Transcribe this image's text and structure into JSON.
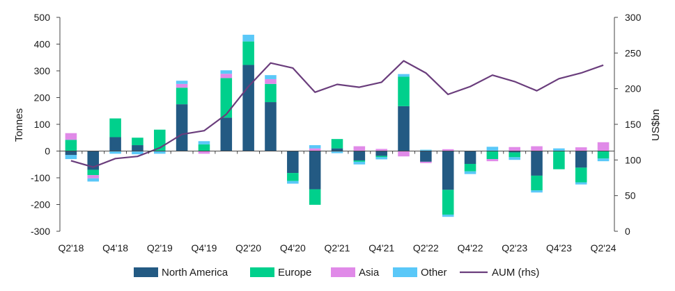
{
  "chart_data": {
    "type": "bar",
    "stacked": true,
    "categories": [
      "Q2'18",
      "Q3'18",
      "Q4'18",
      "Q1'19",
      "Q2'19",
      "Q3'19",
      "Q4'19",
      "Q1'20",
      "Q2'20",
      "Q3'20",
      "Q4'20",
      "Q1'21",
      "Q2'21",
      "Q3'21",
      "Q4'21",
      "Q1'22",
      "Q2'22",
      "Q3'22",
      "Q4'22",
      "Q1'23",
      "Q2'23",
      "Q3'23",
      "Q4'23",
      "Q1'24",
      "Q2'24"
    ],
    "x_tick_labels": [
      "Q2'18",
      "Q4'18",
      "Q2'19",
      "Q4'19",
      "Q2'20",
      "Q4'20",
      "Q2'21",
      "Q4'21",
      "Q2'22",
      "Q4'22",
      "Q2'23",
      "Q4'23",
      "Q2'24"
    ],
    "series": [
      {
        "name": "North America",
        "color": "#235a83",
        "values": [
          -15,
          -70,
          52,
          22,
          0,
          175,
          0,
          125,
          322,
          183,
          -82,
          -143,
          10,
          -35,
          -18,
          168,
          -40,
          -145,
          -48,
          0,
          -5,
          -92,
          0,
          -62,
          0
        ]
      },
      {
        "name": "Europe",
        "color": "#00d08c",
        "values": [
          42,
          -20,
          70,
          28,
          80,
          62,
          25,
          148,
          88,
          68,
          -30,
          -58,
          35,
          -5,
          -5,
          110,
          0,
          -93,
          -28,
          -30,
          -18,
          -55,
          -68,
          -55,
          -28
        ]
      },
      {
        "name": "Asia",
        "color": "#e08ae8",
        "values": [
          25,
          -12,
          0,
          0,
          0,
          14,
          -10,
          16,
          0,
          18,
          0,
          10,
          0,
          18,
          8,
          -20,
          -5,
          7,
          0,
          -8,
          15,
          18,
          0,
          14,
          33
        ]
      },
      {
        "name": "Other",
        "color": "#5ac8f8",
        "values": [
          -15,
          -12,
          -10,
          -12,
          -10,
          12,
          12,
          13,
          25,
          15,
          -10,
          12,
          -8,
          -10,
          -8,
          10,
          5,
          -8,
          -10,
          16,
          -10,
          -8,
          10,
          -8,
          -10
        ]
      }
    ],
    "aum": {
      "name": "AUM (rhs)",
      "color": "#6a3d7c",
      "values": [
        99,
        90,
        102,
        105,
        117,
        136,
        141,
        164,
        203,
        236,
        229,
        195,
        206,
        202,
        209,
        239,
        222,
        192,
        203,
        219,
        210,
        197,
        214,
        222,
        233
      ]
    },
    "ylabel": "Tonnes",
    "y2label": "US$bn",
    "ylim": [
      -300,
      500
    ],
    "y_ticks": [
      500,
      400,
      300,
      200,
      100,
      0,
      -100,
      -200,
      -300
    ],
    "y2lim": [
      0,
      300
    ],
    "y2_ticks": [
      300,
      250,
      200,
      150,
      100,
      50,
      0
    ],
    "legend_position": "bottom",
    "grid": false
  }
}
